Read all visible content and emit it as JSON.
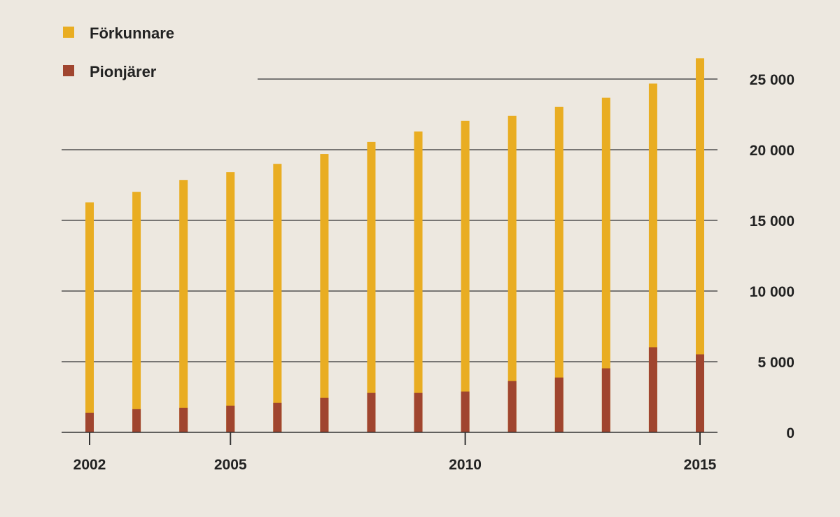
{
  "chart_data": {
    "type": "bar",
    "categories": [
      "2002",
      "2003",
      "2004",
      "2005",
      "2006",
      "2007",
      "2008",
      "2009",
      "2010",
      "2011",
      "2012",
      "2013",
      "2014",
      "2015"
    ],
    "x_tick_labels": [
      "2002",
      "2005",
      "2010",
      "2015"
    ],
    "series": [
      {
        "name": "Förkunnare",
        "color": "#e9ad22",
        "values": [
          16270,
          17020,
          17860,
          18410,
          19000,
          19700,
          20550,
          21290,
          22040,
          22390,
          23030,
          23680,
          24680,
          26470
        ]
      },
      {
        "name": "Pionjärer",
        "color": "#a0452f",
        "values": [
          1390,
          1640,
          1740,
          1890,
          2090,
          2440,
          2790,
          2790,
          2890,
          3630,
          3880,
          4530,
          6020,
          5520
        ]
      }
    ],
    "overlap": true,
    "y_ticks": [
      0,
      5000,
      10000,
      15000,
      20000,
      25000
    ],
    "y_tick_labels": [
      "0",
      "5 000",
      "10 000",
      "15 000",
      "20 000",
      "25 000"
    ],
    "ylim": [
      0,
      26500
    ],
    "y_axis_side": "right",
    "grid": true,
    "legend_position": "top-left",
    "title": "",
    "xlabel": "",
    "ylabel": ""
  }
}
